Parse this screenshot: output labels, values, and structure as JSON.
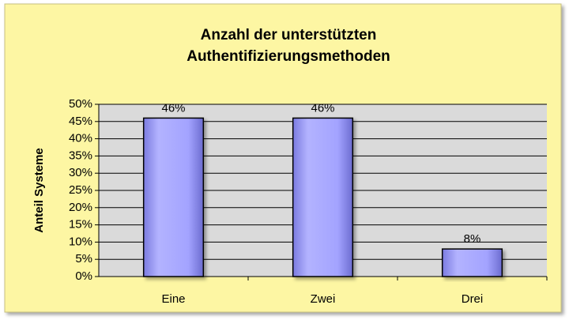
{
  "chart_data": {
    "type": "bar",
    "title": [
      "Anzahl der unterstützten",
      "Authentifizierungsmethoden"
    ],
    "ylabel": "Anteil Systeme",
    "categories": [
      "Eine",
      "Zwei",
      "Drei"
    ],
    "values": [
      46,
      46,
      8
    ],
    "value_labels": [
      "46%",
      "46%",
      "8%"
    ],
    "color": "#9999ff",
    "ylim": [
      0,
      50
    ],
    "yticks": [
      {
        "value": 0,
        "label": "0%"
      },
      {
        "value": 5,
        "label": "5%"
      },
      {
        "value": 10,
        "label": "10%"
      },
      {
        "value": 15,
        "label": "15%"
      },
      {
        "value": 20,
        "label": "20%"
      },
      {
        "value": 25,
        "label": "25%"
      },
      {
        "value": 30,
        "label": "30%"
      },
      {
        "value": 35,
        "label": "35%"
      },
      {
        "value": 40,
        "label": "40%"
      },
      {
        "value": 45,
        "label": "45%"
      },
      {
        "value": 50,
        "label": "50%"
      }
    ],
    "grid": true
  }
}
